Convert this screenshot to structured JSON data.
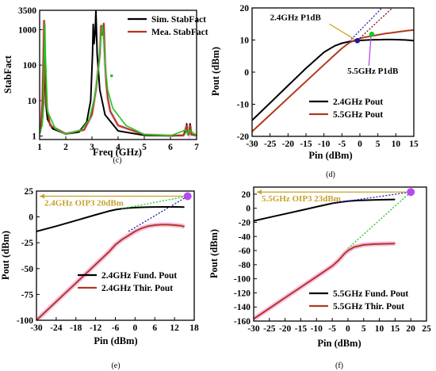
{
  "colors": {
    "black": "#000000",
    "red": "#b03a1c",
    "pink": "#f7b2e6",
    "navy": "#1a1aa8",
    "green": "#1ec81e",
    "gold": "#c8a02a",
    "purple": "#b44cf0",
    "darkred": "#8b0000"
  },
  "chart_data": [
    {
      "panel_label": "(c)",
      "type": "line",
      "xlabel": "Freq (GHz)",
      "ylabel": "StabFact",
      "xlim": [
        1,
        7
      ],
      "ylim": [
        0.8,
        3500
      ],
      "yscale": "log",
      "xticks": [
        "1",
        "2",
        "3",
        "4",
        "5",
        "6",
        "7"
      ],
      "yticks": [
        {
          "v": 1,
          "label": "1"
        },
        {
          "v": 10,
          "label": "10"
        },
        {
          "v": 100,
          "label": "100"
        },
        {
          "v": 1000,
          "label": "1000"
        },
        {
          "v": 3500,
          "label": "3500"
        }
      ],
      "legend": {
        "position": "top-right"
      },
      "series": [
        {
          "name": "Sim.  StabFact",
          "color": "#000000",
          "x": [
            1.0,
            1.1,
            1.15,
            1.2,
            1.24,
            1.3,
            1.5,
            2.0,
            2.5,
            2.8,
            2.95,
            3.02,
            3.05,
            3.08,
            3.12,
            3.15,
            3.2,
            3.3,
            3.5,
            4.0,
            5.0,
            6.0,
            6.5,
            6.6,
            6.62,
            6.64,
            6.7,
            6.75,
            6.8,
            7.0
          ],
          "y": [
            1.2,
            2.5,
            8,
            200,
            8,
            3,
            1.6,
            1.15,
            1.3,
            2.5,
            10,
            200,
            1400,
            400,
            800,
            3400,
            200,
            20,
            4,
            1.4,
            1.05,
            1.02,
            1.05,
            1.5,
            2.2,
            1.5,
            1.1,
            2.2,
            1.1,
            1.05
          ]
        },
        {
          "name": "Mea.  StabFact",
          "color": "#b03a1c",
          "x": [
            1.0,
            1.05,
            1.1,
            1.14,
            1.17,
            1.2,
            1.25,
            1.4,
            2.0,
            2.7,
            3.0,
            3.15,
            3.3,
            3.35,
            3.4,
            3.45,
            3.5,
            3.55,
            3.6,
            3.7,
            4.0,
            5.0,
            6.0,
            6.5,
            6.62,
            6.64,
            6.7,
            6.75,
            6.8,
            7.0
          ],
          "y": [
            1.2,
            2,
            8,
            120,
            1800,
            120,
            8,
            2,
            1.15,
            1.5,
            4,
            20,
            200,
            1300,
            700,
            1500,
            120,
            30,
            12,
            5,
            2,
            1.1,
            1.03,
            1.05,
            2,
            1.4,
            1.1,
            2,
            1.1,
            1.05
          ]
        },
        {
          "name": "",
          "color": "#1ec81e",
          "x": [
            1.0,
            1.1,
            1.15,
            1.18,
            1.2,
            1.22,
            1.3,
            1.6,
            2.0,
            2.6,
            2.9,
            3.1,
            3.25,
            3.35,
            3.4,
            3.45,
            3.5,
            3.6,
            3.8,
            4.3,
            5.0,
            6.0,
            6.6,
            6.65,
            6.7,
            7.0
          ],
          "y": [
            1.15,
            2,
            8,
            300,
            1500,
            200,
            5,
            1.6,
            1.12,
            1.5,
            3,
            12,
            80,
            800,
            1300,
            500,
            100,
            20,
            6,
            2,
            1.1,
            1.02,
            1.5,
            1.1,
            1.5,
            1.05
          ]
        }
      ],
      "annotations": [
        {
          "x": 3.75,
          "y": 50,
          "label": "",
          "color": "#1ec81e"
        }
      ]
    },
    {
      "panel_label": "(d)",
      "type": "line",
      "xlabel": "Pin (dBm)",
      "ylabel": "Pout (dBm)",
      "xlim": [
        -30,
        15
      ],
      "ylim": [
        -20,
        20
      ],
      "xticks": [
        -30,
        -25,
        -20,
        -15,
        -10,
        -5,
        0,
        5,
        10,
        15
      ],
      "yticks": [
        -20,
        -10,
        0,
        10,
        20
      ],
      "legend": {
        "position": "bottom-right"
      },
      "series": [
        {
          "name": "2.4GHz Pout",
          "color": "#000000",
          "x": [
            -30,
            -25,
            -20,
            -15,
            -10,
            -7,
            -5,
            -3,
            -1,
            1,
            3,
            5,
            7,
            9,
            11,
            13,
            15
          ],
          "y": [
            -15,
            -9.6,
            -4.2,
            1.2,
            6.2,
            8.2,
            9.0,
            9.5,
            9.8,
            9.95,
            10.05,
            10.1,
            10.15,
            10.15,
            10.1,
            10.0,
            9.8
          ]
        },
        {
          "name": "5.5GHz Pout",
          "color": "#b03a1c",
          "x": [
            -30,
            -25,
            -20,
            -15,
            -10,
            -7,
            -5,
            -3,
            -1,
            1,
            3,
            5,
            7,
            9,
            11,
            13,
            15
          ],
          "y": [
            -18.5,
            -13.3,
            -8.1,
            -2.9,
            2.3,
            5.4,
            7.4,
            9.1,
            10.2,
            10.8,
            11.2,
            11.6,
            12.0,
            12.3,
            12.6,
            12.9,
            13.1
          ]
        }
      ],
      "annotations": [
        {
          "label": "2.4GHz P1dB",
          "x": -0.7,
          "y": 9.8,
          "color": "#1a1aa8"
        },
        {
          "label": "5.5GHz P1dB",
          "x": 3.3,
          "y": 11.8,
          "color": "#1ec81e"
        }
      ]
    },
    {
      "panel_label": "(e)",
      "type": "line",
      "xlabel": "Pin (dBm)",
      "ylabel": "Pout (dBm)",
      "xlim": [
        -30,
        18
      ],
      "ylim": [
        -100,
        25
      ],
      "xticks": [
        -30,
        -24,
        -18,
        -12,
        -6,
        0,
        6,
        12,
        18
      ],
      "yticks": [
        -100,
        -75,
        -50,
        -25,
        0,
        25
      ],
      "legend": {
        "position": "bottom-right"
      },
      "series": [
        {
          "name": "2.4GHz Fund. Pout",
          "color": "#000000",
          "x": [
            -30,
            -24,
            -18,
            -12,
            -8,
            -6,
            -4,
            -2,
            0,
            2,
            4,
            6,
            8,
            10,
            12,
            14,
            15
          ],
          "y": [
            -14,
            -9,
            -3.5,
            2,
            5.5,
            7,
            8,
            8.6,
            9,
            9.3,
            9.5,
            9.6,
            9.7,
            9.7,
            9.7,
            9.6,
            9.5
          ]
        },
        {
          "name": "2.4GHz Thir.  Pout",
          "color": "#b03a1c",
          "x": [
            -30,
            -27,
            -24,
            -21,
            -18,
            -15,
            -12,
            -10,
            -8,
            -6,
            -4,
            -2,
            0,
            2,
            4,
            6,
            8,
            10,
            12,
            14,
            15
          ],
          "y": [
            -100,
            -91,
            -82,
            -73,
            -64,
            -55,
            -46,
            -40,
            -34,
            -27,
            -22,
            -18,
            -14,
            -11,
            -9,
            -8,
            -7.5,
            -7.5,
            -8,
            -8.5,
            -9.5
          ]
        }
      ],
      "annotations": [
        {
          "label": "2.4GHz OIP3 20dBm",
          "x": 16,
          "y": 20,
          "color": "#c8a02a"
        }
      ]
    },
    {
      "panel_label": "(f)",
      "type": "line",
      "xlabel": "Pin (dBm)",
      "ylabel": "Pout (dBm)",
      "xlim": [
        -30,
        25
      ],
      "ylim": [
        -160,
        30
      ],
      "xticks": [
        -30,
        -25,
        -20,
        -15,
        -10,
        -5,
        0,
        5,
        10,
        15,
        20,
        25
      ],
      "yticks": [
        -160,
        -140,
        -120,
        -100,
        -80,
        -60,
        -40,
        -20,
        0,
        20
      ],
      "legend": {
        "position": "bottom-right"
      },
      "series": [
        {
          "name": "5.5GHz Fund. Pout",
          "color": "#000000",
          "x": [
            -30,
            -25,
            -20,
            -15,
            -10,
            -5,
            -2,
            0,
            3,
            6,
            10,
            15
          ],
          "y": [
            -18,
            -13,
            -8,
            -3,
            2,
            7,
            9,
            10,
            11,
            11.5,
            12,
            12.5
          ]
        },
        {
          "name": "5.5GHz Thir.  Pout",
          "color": "#b03a1c",
          "x": [
            -30,
            -25,
            -20,
            -15,
            -10,
            -5,
            -3,
            -1,
            0,
            2,
            5,
            8,
            11,
            15
          ],
          "y": [
            -157,
            -142,
            -127,
            -112,
            -97,
            -82,
            -74,
            -64,
            -60,
            -55,
            -52,
            -51,
            -50.5,
            -50
          ]
        }
      ],
      "annotations": [
        {
          "label": "5.5GHz OIP3 23dBm",
          "x": 20,
          "y": 23,
          "color": "#c8a02a"
        }
      ]
    }
  ]
}
